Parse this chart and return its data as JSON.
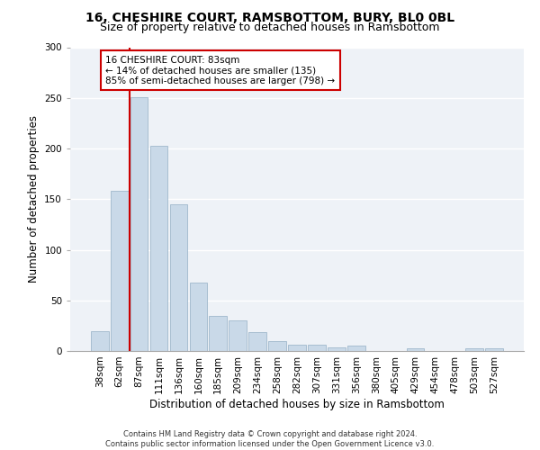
{
  "title": "16, CHESHIRE COURT, RAMSBOTTOM, BURY, BL0 0BL",
  "subtitle": "Size of property relative to detached houses in Ramsbottom",
  "xlabel": "Distribution of detached houses by size in Ramsbottom",
  "ylabel": "Number of detached properties",
  "categories": [
    "38sqm",
    "62sqm",
    "87sqm",
    "111sqm",
    "136sqm",
    "160sqm",
    "185sqm",
    "209sqm",
    "234sqm",
    "258sqm",
    "282sqm",
    "307sqm",
    "331sqm",
    "356sqm",
    "380sqm",
    "405sqm",
    "429sqm",
    "454sqm",
    "478sqm",
    "503sqm",
    "527sqm"
  ],
  "values": [
    20,
    158,
    251,
    203,
    145,
    68,
    35,
    30,
    19,
    10,
    6,
    6,
    4,
    5,
    0,
    0,
    3,
    0,
    0,
    3,
    3
  ],
  "bar_color": "#c9d9e8",
  "bar_edge_color": "#a0b8cc",
  "vline_x_index": 2,
  "vline_color": "#cc0000",
  "annotation_text": "16 CHESHIRE COURT: 83sqm\n← 14% of detached houses are smaller (135)\n85% of semi-detached houses are larger (798) →",
  "annotation_box_color": "white",
  "annotation_box_edge_color": "#cc0000",
  "ylim": [
    0,
    300
  ],
  "yticks": [
    0,
    50,
    100,
    150,
    200,
    250,
    300
  ],
  "background_color": "#eef2f7",
  "footer_text": "Contains HM Land Registry data © Crown copyright and database right 2024.\nContains public sector information licensed under the Open Government Licence v3.0.",
  "title_fontsize": 10,
  "subtitle_fontsize": 9,
  "xlabel_fontsize": 8.5,
  "ylabel_fontsize": 8.5,
  "tick_fontsize": 7.5,
  "annotation_fontsize": 7.5
}
